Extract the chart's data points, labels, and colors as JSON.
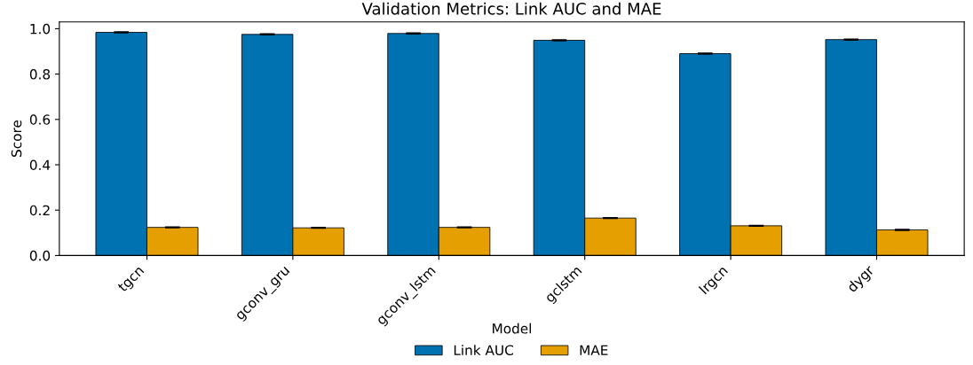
{
  "chart_data": {
    "type": "bar",
    "title": "Validation Metrics: Link AUC and MAE",
    "xlabel": "Model",
    "ylabel": "Score",
    "categories": [
      "tgcn",
      "gconv_gru",
      "gconv_lstm",
      "gclstm",
      "lrgcn",
      "dygr"
    ],
    "series": [
      {
        "name": "Link AUC",
        "color": "#0072b2",
        "values": [
          0.984,
          0.975,
          0.979,
          0.949,
          0.89,
          0.952
        ],
        "errors": [
          0.002,
          0.002,
          0.002,
          0.002,
          0.002,
          0.002
        ]
      },
      {
        "name": "MAE",
        "color": "#e69f00",
        "values": [
          0.124,
          0.122,
          0.124,
          0.165,
          0.131,
          0.113
        ],
        "errors": [
          0.002,
          0.002,
          0.002,
          0.002,
          0.002,
          0.002
        ]
      }
    ],
    "ylim": [
      0,
      1.03
    ],
    "yticks": [
      {
        "value": 0,
        "label": "0.0"
      },
      {
        "value": 0.2,
        "label": "0.2"
      },
      {
        "value": 0.4,
        "label": "0.4"
      },
      {
        "value": 0.6,
        "label": "0.6"
      },
      {
        "value": 0.8,
        "label": "0.8"
      },
      {
        "value": 1.0,
        "label": "1.0"
      }
    ],
    "grid": false,
    "legend": "bottom"
  }
}
